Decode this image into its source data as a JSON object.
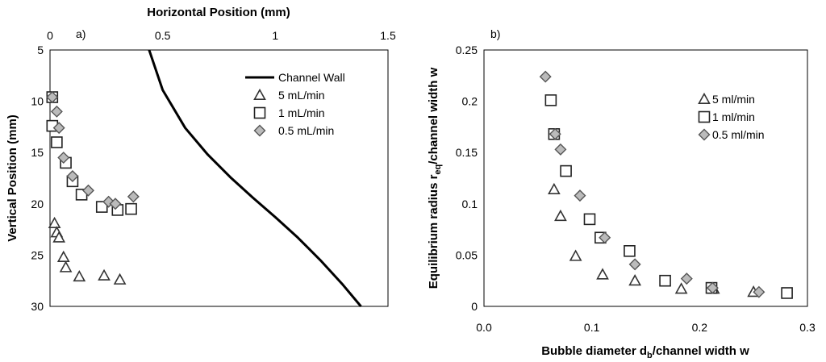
{
  "chart_data": [
    {
      "type": "scatter",
      "panel_label": "a)",
      "xlabel": "Horizontal Position (mm)",
      "ylabel": "Vertical Position (mm)",
      "xlim": [
        0,
        1.5
      ],
      "ylim": [
        5,
        30
      ],
      "y_inverted": true,
      "x_axis_position": "top",
      "x_ticks": [
        0,
        0.5,
        1,
        1.5
      ],
      "y_ticks": [
        5,
        10,
        15,
        20,
        25,
        30
      ],
      "legend_position": "top-right",
      "series": [
        {
          "name": "Channel Wall",
          "type": "line",
          "color": "#000000",
          "x": [
            0.44,
            0.5,
            0.6,
            0.7,
            0.8,
            0.9,
            1.0,
            1.1,
            1.2,
            1.3,
            1.38
          ],
          "y": [
            5,
            8.9,
            12.6,
            15.2,
            17.4,
            19.4,
            21.3,
            23.3,
            25.5,
            27.9,
            30
          ]
        },
        {
          "name": "5 mL/min",
          "marker": "triangle",
          "x": [
            0.02,
            0.03,
            0.04,
            0.06,
            0.07,
            0.13,
            0.24,
            0.31
          ],
          "y": [
            21.9,
            22.8,
            23.3,
            25.2,
            26.2,
            27.1,
            27.0,
            27.4
          ]
        },
        {
          "name": "1 mL/min",
          "marker": "square",
          "x": [
            0.01,
            0.01,
            0.03,
            0.07,
            0.1,
            0.14,
            0.23,
            0.3,
            0.36
          ],
          "y": [
            9.6,
            12.4,
            14.0,
            16.0,
            17.8,
            19.1,
            20.3,
            20.6,
            20.5
          ]
        },
        {
          "name": "0.5 mL/min",
          "marker": "diamond",
          "x": [
            0.01,
            0.03,
            0.04,
            0.06,
            0.1,
            0.17,
            0.26,
            0.29,
            0.37
          ],
          "y": [
            9.6,
            11.0,
            12.6,
            15.5,
            17.3,
            18.7,
            19.8,
            20.0,
            19.3
          ]
        }
      ]
    },
    {
      "type": "scatter",
      "panel_label": "b)",
      "xlabel": "Bubble diameter d",
      "xlabel_sub": "b",
      "xlabel_rest": "/channel width w",
      "ylabel": "Equilibrium radius r",
      "ylabel_sub": "eq",
      "ylabel_rest": "/channel width w",
      "xlim": [
        0,
        0.3
      ],
      "ylim": [
        0,
        0.25
      ],
      "x_ticks": [
        0.0,
        0.1,
        0.2,
        0.3
      ],
      "x_tick_labels": [
        "0.0",
        "0.1",
        "0.2",
        "0.3"
      ],
      "y_ticks": [
        0,
        0.05,
        0.1,
        0.15,
        0.2,
        0.25
      ],
      "y_tick_labels": [
        "0",
        "0.05",
        "0.1",
        "0.15",
        "0.2",
        "0.25"
      ],
      "legend_position": "top-right",
      "series": [
        {
          "name": "5 ml/min",
          "marker": "triangle",
          "x": [
            0.065,
            0.071,
            0.085,
            0.11,
            0.14,
            0.183,
            0.213,
            0.25
          ],
          "y": [
            0.114,
            0.088,
            0.049,
            0.031,
            0.025,
            0.017,
            0.017,
            0.014
          ]
        },
        {
          "name": "1 ml/min",
          "marker": "square",
          "x": [
            0.062,
            0.065,
            0.076,
            0.098,
            0.108,
            0.135,
            0.168,
            0.211,
            0.281
          ],
          "y": [
            0.201,
            0.168,
            0.132,
            0.085,
            0.067,
            0.054,
            0.025,
            0.018,
            0.013
          ]
        },
        {
          "name": "0.5 ml/min",
          "marker": "diamond",
          "x": [
            0.057,
            0.066,
            0.071,
            0.089,
            0.112,
            0.14,
            0.188,
            0.212,
            0.255
          ],
          "y": [
            0.224,
            0.168,
            0.153,
            0.108,
            0.067,
            0.041,
            0.027,
            0.018,
            0.014
          ]
        }
      ]
    }
  ]
}
